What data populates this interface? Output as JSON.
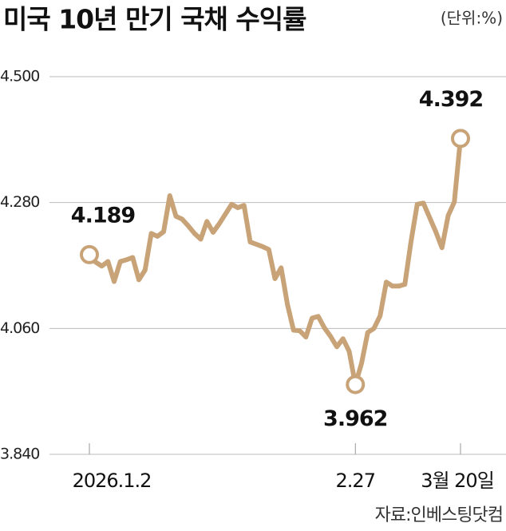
{
  "chart_data": {
    "type": "line",
    "title": "미국 10년 만기 국채 수익률",
    "unit": "(단위:%)",
    "source": "자료:인베스팅닷컴",
    "categories": [
      "2026.1.2",
      null,
      null,
      null,
      null,
      null,
      null,
      null,
      null,
      null,
      null,
      null,
      null,
      null,
      null,
      null,
      null,
      null,
      null,
      null,
      null,
      null,
      null,
      null,
      null,
      null,
      null,
      null,
      null,
      null,
      null,
      null,
      null,
      null,
      null,
      null,
      null,
      null,
      null,
      null,
      null,
      null,
      null,
      "2.27",
      null,
      null,
      null,
      null,
      null,
      null,
      null,
      null,
      null,
      null,
      null,
      null,
      null,
      null,
      null,
      null,
      "3월 20일"
    ],
    "series": [
      {
        "color": "#c9a378",
        "values": [
          4.189,
          4.176,
          4.169,
          4.177,
          4.142,
          4.177,
          4.18,
          4.184,
          4.145,
          4.162,
          4.226,
          4.221,
          4.229,
          4.292,
          4.256,
          4.251,
          4.239,
          4.226,
          4.216,
          4.247,
          4.228,
          4.243,
          4.26,
          4.277,
          4.271,
          4.275,
          4.211,
          4.207,
          4.203,
          4.198,
          4.147,
          4.166,
          4.103,
          4.057,
          4.056,
          4.045,
          4.078,
          4.081,
          4.061,
          4.046,
          4.028,
          4.042,
          4.02,
          3.962,
          3.999,
          4.053,
          4.06,
          4.082,
          4.141,
          4.134,
          4.134,
          4.137,
          4.212,
          4.277,
          4.279,
          4.254,
          4.229,
          4.201,
          4.257,
          4.281,
          4.392
        ],
        "value_labels": [
          "4.189",
          null,
          null,
          null,
          null,
          null,
          null,
          null,
          null,
          null,
          null,
          null,
          null,
          null,
          null,
          null,
          null,
          null,
          null,
          null,
          null,
          null,
          null,
          null,
          null,
          null,
          null,
          null,
          null,
          null,
          null,
          null,
          null,
          null,
          null,
          null,
          null,
          null,
          null,
          null,
          null,
          null,
          null,
          "3.962",
          null,
          null,
          null,
          null,
          null,
          null,
          null,
          null,
          null,
          null,
          null,
          null,
          null,
          null,
          null,
          null,
          "4.392"
        ]
      }
    ],
    "ylim": [
      3.84,
      4.5
    ],
    "yticks": [
      {
        "value": 3.84,
        "label": "3.840"
      },
      {
        "value": 4.06,
        "label": "4.060"
      },
      {
        "value": 4.28,
        "label": "4.280"
      },
      {
        "value": 4.5,
        "label": "4.500"
      }
    ],
    "grid": true
  }
}
